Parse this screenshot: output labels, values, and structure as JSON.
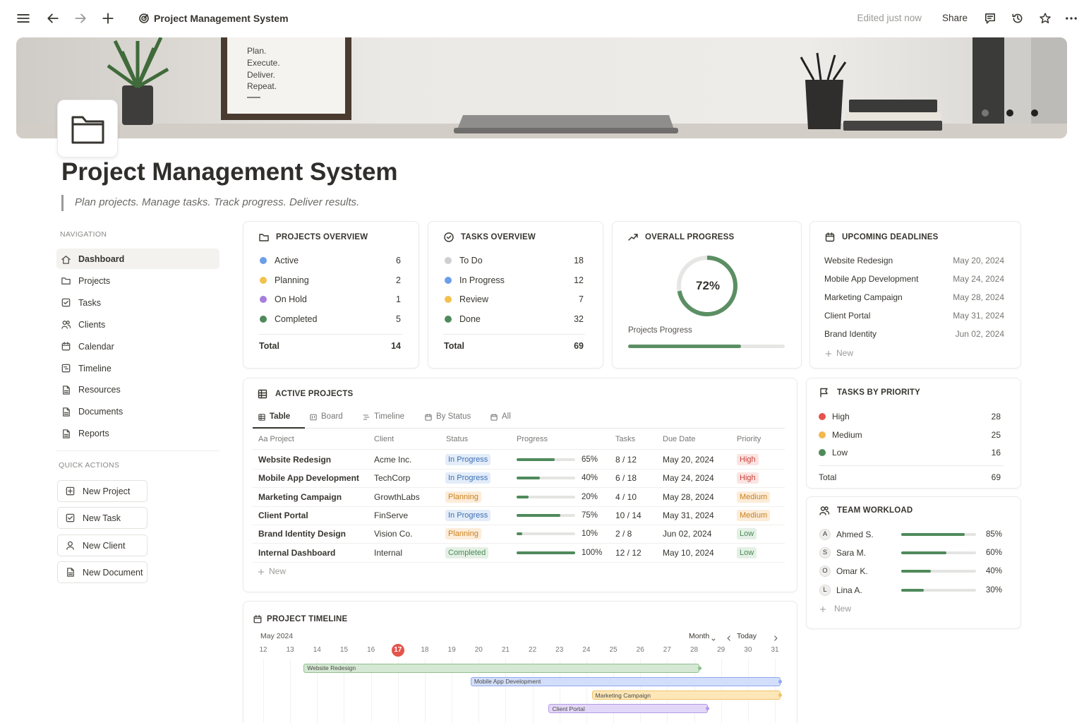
{
  "topbar": {
    "title": "Project Management System",
    "edited": "Edited just now",
    "share": "Share"
  },
  "banner": {
    "quote": [
      "Plan.",
      "Execute.",
      "Deliver.",
      "Repeat."
    ]
  },
  "header": {
    "title": "Project Management System",
    "subtitle": "Plan projects. Manage tasks. Track progress. Deliver results."
  },
  "navigation": {
    "heading": "NAVIGATION",
    "items": [
      "Dashboard",
      "Projects",
      "Tasks",
      "Clients",
      "Calendar",
      "Timeline",
      "Resources",
      "Documents",
      "Reports"
    ]
  },
  "quick_actions": {
    "heading": "QUICK ACTIONS",
    "items": [
      "New Project",
      "New Task",
      "New Client",
      "New Document"
    ]
  },
  "projects_overview": {
    "title": "PROJECTS OVERVIEW",
    "rows": [
      {
        "label": "Active",
        "value": 6,
        "color": "#6c9eea"
      },
      {
        "label": "Planning",
        "value": 2,
        "color": "#f2c14e"
      },
      {
        "label": "On Hold",
        "value": 1,
        "color": "#a87de0"
      },
      {
        "label": "Completed",
        "value": 5,
        "color": "#4f8a5b"
      }
    ],
    "total_label": "Total",
    "total": 14
  },
  "tasks_overview": {
    "title": "TASKS OVERVIEW",
    "rows": [
      {
        "label": "To Do",
        "value": 18,
        "color": "#cfcfcf"
      },
      {
        "label": "In Progress",
        "value": 12,
        "color": "#6c9eea"
      },
      {
        "label": "Review",
        "value": 7,
        "color": "#f2c14e"
      },
      {
        "label": "Done",
        "value": 32,
        "color": "#4f8a5b"
      }
    ],
    "total_label": "Total",
    "total": 69
  },
  "overall_progress": {
    "title": "OVERALL PROGRESS",
    "percent": "72%",
    "label": "Projects Progress",
    "color": "#5b8f63"
  },
  "upcoming_deadlines": {
    "title": "UPCOMING DEADLINES",
    "rows": [
      {
        "name": "Website Redesign",
        "date": "May 20, 2024"
      },
      {
        "name": "Mobile App Development",
        "date": "May 24, 2024"
      },
      {
        "name": "Marketing Campaign",
        "date": "May 28, 2024"
      },
      {
        "name": "Client Portal",
        "date": "May 31, 2024"
      },
      {
        "name": "Brand Identity",
        "date": "Jun 02, 2024"
      }
    ],
    "new": "New"
  },
  "active_projects": {
    "title": "ACTIVE PROJECTS",
    "tabs": [
      "Table",
      "Board",
      "Timeline",
      "By Status",
      "All"
    ],
    "columns": [
      "Aa Project",
      "Client",
      "Status",
      "Progress",
      "Tasks",
      "Due Date",
      "Priority"
    ],
    "rows": [
      [
        "Website Redesign",
        "Acme Inc.",
        "In Progress",
        "65%",
        "8 / 12",
        "May 20, 2024",
        "High"
      ],
      [
        "Mobile App Development",
        "TechCorp",
        "In Progress",
        "40%",
        "6 / 18",
        "May 24, 2024",
        "High"
      ],
      [
        "Marketing Campaign",
        "GrowthLabs",
        "Planning",
        "20%",
        "4 / 10",
        "May 28, 2024",
        "Medium"
      ],
      [
        "Client Portal",
        "FinServe",
        "In Progress",
        "75%",
        "10 / 14",
        "May 31, 2024",
        "Medium"
      ],
      [
        "Brand Identity Design",
        "Vision Co.",
        "Planning",
        "10%",
        "2 / 8",
        "Jun 02, 2024",
        "Low"
      ],
      [
        "Internal Dashboard",
        "Internal",
        "Completed",
        "100%",
        "12 / 12",
        "May 10, 2024",
        "Low"
      ]
    ],
    "pill_colors": {
      "In Progress": [
        "#e3edf9",
        "#3d6fb6"
      ],
      "Planning": [
        "#fcecd8",
        "#c9821f"
      ],
      "Completed": [
        "#e4f0e5",
        "#4a8a55"
      ],
      "High": [
        "#fbe4e2",
        "#c9423a"
      ],
      "Medium": [
        "#fcecd8",
        "#c9821f"
      ],
      "Low": [
        "#e4f0e5",
        "#4a8a55"
      ]
    },
    "bar_color": "#4f8a5b",
    "new": "New"
  },
  "tasks_by_priority": {
    "title": "TASKS BY PRIORITY",
    "rows": [
      {
        "label": "High",
        "value": 28,
        "color": "#e5534b"
      },
      {
        "label": "Medium",
        "value": 25,
        "color": "#f2b84b"
      },
      {
        "label": "Low",
        "value": 16,
        "color": "#4f8a5b"
      }
    ],
    "total_label": "Total",
    "total": 69
  },
  "team_workload": {
    "title": "TEAM WORKLOAD",
    "rows": [
      {
        "initial": "A",
        "name": "Ahmed S.",
        "percent": "85%"
      },
      {
        "initial": "S",
        "name": "Sara M.",
        "percent": "60%"
      },
      {
        "initial": "O",
        "name": "Omar K.",
        "percent": "40%"
      },
      {
        "initial": "L",
        "name": "Lina A.",
        "percent": "30%"
      }
    ],
    "color": "#4f8a5b",
    "new": "New"
  },
  "project_timeline": {
    "title": "PROJECT TIMELINE",
    "month": "May 2024",
    "view": "Month",
    "today": "Today",
    "days": [
      12,
      13,
      14,
      15,
      16,
      17,
      18,
      19,
      20,
      21,
      22,
      23,
      24,
      25,
      26,
      27,
      28,
      29,
      30,
      31
    ],
    "today_day": 17,
    "bars": [
      {
        "label": "Website Redesign",
        "start": 13.5,
        "end": 28.2,
        "fill": "#d5e8d4",
        "stroke": "#8fbf8d"
      },
      {
        "label": "Mobile App Development",
        "start": 19.7,
        "end": 31.2,
        "fill": "#d3defa",
        "stroke": "#8ea9ee"
      },
      {
        "label": "Marketing Campaign",
        "start": 24.2,
        "end": 31.2,
        "fill": "#fde7b8",
        "stroke": "#f0c266"
      },
      {
        "label": "Client Portal",
        "start": 22.6,
        "end": 28.5,
        "fill": "#e3d7f7",
        "stroke": "#b49ae8"
      }
    ]
  }
}
